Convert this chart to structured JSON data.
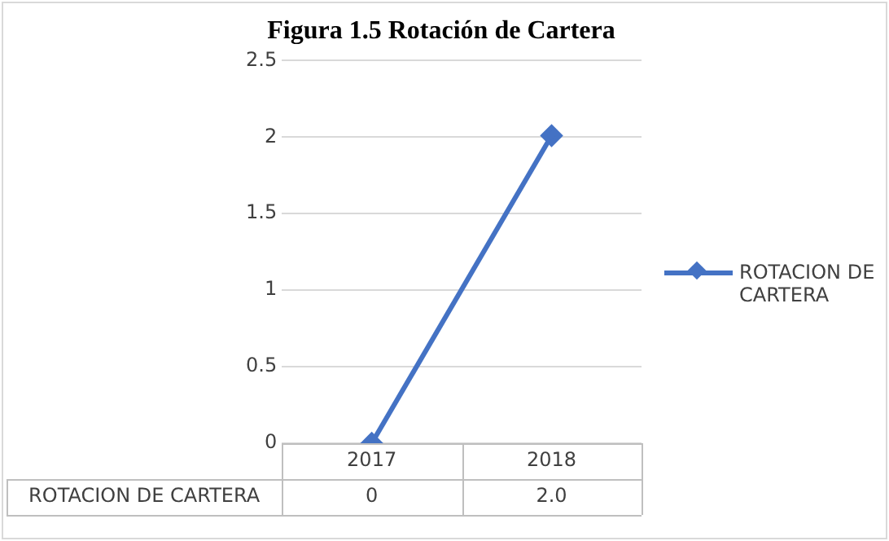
{
  "chart_data": {
    "type": "line",
    "title": "Figura 1.5 Rotación de Cartera",
    "categories": [
      "2017",
      "2018"
    ],
    "series": [
      {
        "name": "ROTACION DE CARTERA",
        "color": "#4472c4",
        "values": [
          0,
          2.01
        ],
        "value_labels": [
          "0",
          "2.0"
        ]
      }
    ],
    "ylim": [
      0,
      2.5
    ],
    "yticks": [
      0,
      0.5,
      1,
      1.5,
      2,
      2.5
    ],
    "grid": "y",
    "legend": "right",
    "marker": "diamond",
    "line_style": "solid"
  }
}
